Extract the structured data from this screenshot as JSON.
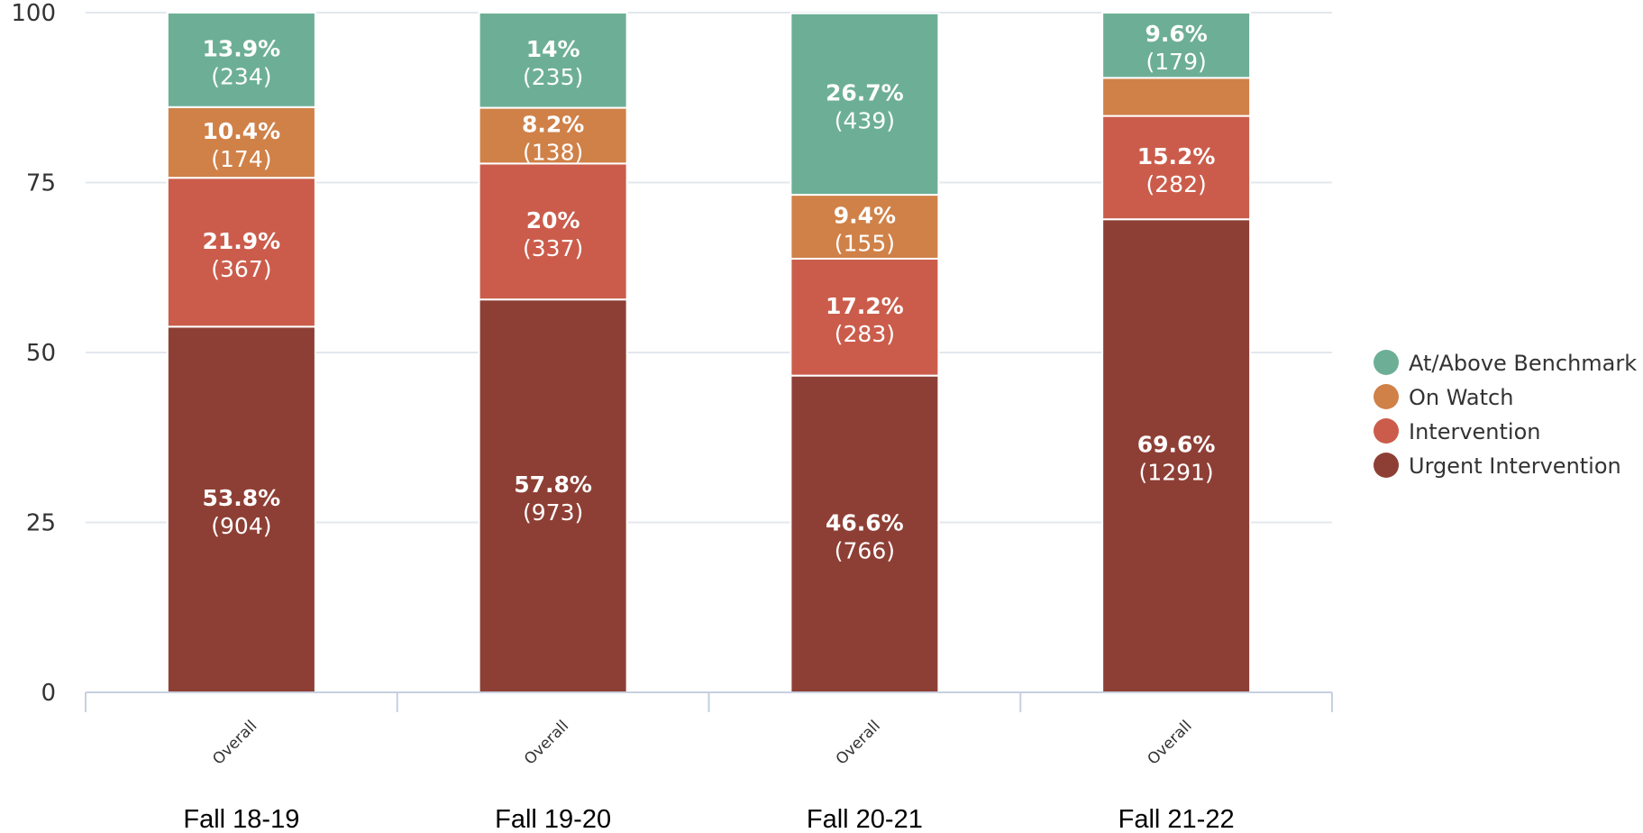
{
  "chart_data": {
    "type": "bar",
    "stacked": true,
    "ylim": [
      0,
      100
    ],
    "yticks": [
      0,
      25,
      50,
      75,
      100
    ],
    "grid": true,
    "legend_position": "right",
    "categories": [
      "Overall",
      "Overall",
      "Overall",
      "Overall"
    ],
    "groups": [
      "Fall 18-19",
      "Fall 19-20",
      "Fall 20-21",
      "Fall 21-22"
    ],
    "series": [
      {
        "name": "Urgent Intervention",
        "color": "#8e3f35",
        "values": [
          53.8,
          57.8,
          46.6,
          69.6
        ],
        "labels": [
          "53.8%",
          "57.8%",
          "46.6%",
          "69.6%"
        ],
        "counts": [
          "(904)",
          "(973)",
          "(766)",
          "(1291)"
        ]
      },
      {
        "name": "Intervention",
        "color": "#cb5c4b",
        "values": [
          21.9,
          20,
          17.2,
          15.2
        ],
        "labels": [
          "21.9%",
          "20%",
          "17.2%",
          "15.2%"
        ],
        "counts": [
          "(367)",
          "(337)",
          "(283)",
          "(282)"
        ]
      },
      {
        "name": "On Watch",
        "color": "#d08148",
        "values": [
          10.4,
          8.2,
          9.4,
          5.6
        ],
        "labels": [
          "10.4%",
          "8.2%",
          "9.4%",
          ""
        ],
        "counts": [
          "(174)",
          "(138)",
          "(155)",
          ""
        ]
      },
      {
        "name": "At/Above Benchmark",
        "color": "#6daf96",
        "values": [
          13.9,
          14,
          26.7,
          9.6
        ],
        "labels": [
          "13.9%",
          "14%",
          "26.7%",
          "9.6%"
        ],
        "counts": [
          "(234)",
          "(235)",
          "(439)",
          "(179)"
        ]
      }
    ],
    "legend_order": [
      "At/Above Benchmark",
      "On Watch",
      "Intervention",
      "Urgent Intervention"
    ]
  }
}
